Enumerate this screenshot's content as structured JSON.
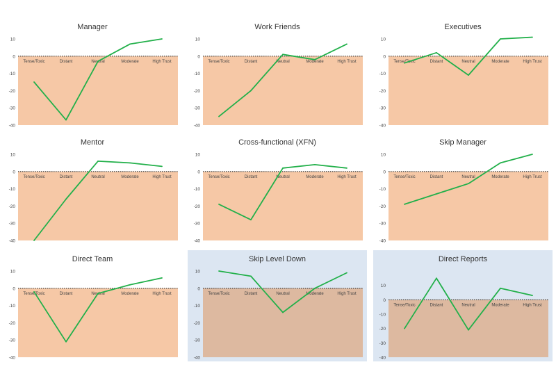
{
  "colors": {
    "negative_zone": "#f6c8a6",
    "negative_zone_blue_panel": "#ddb9a0",
    "blue_panel_bg": "#dce6f2",
    "line": "#22b04a",
    "zero_line": "#333333"
  },
  "chart_data": [
    {
      "type": "line",
      "title": "Manager",
      "categories": [
        "Tense/Toxic",
        "Distant",
        "Neutral",
        "Moderate",
        "High Trust"
      ],
      "values": [
        -15,
        -37,
        -3,
        7,
        10
      ],
      "ylim": [
        -40,
        10
      ],
      "yticks": [
        -40,
        -30,
        -20,
        -10,
        0,
        10
      ],
      "zero_line": "dotted",
      "background": "white"
    },
    {
      "type": "line",
      "title": "Work Friends",
      "categories": [
        "Tense/Toxic",
        "Distant",
        "Neutral",
        "Moderate",
        "High Trust"
      ],
      "values": [
        -35,
        -20,
        1,
        -2,
        7
      ],
      "ylim": [
        -40,
        10
      ],
      "yticks": [
        -40,
        -30,
        -20,
        -10,
        0,
        10
      ],
      "zero_line": "dotted",
      "background": "white"
    },
    {
      "type": "line",
      "title": "Executives",
      "categories": [
        "Tense/Toxic",
        "Distant",
        "Neutral",
        "Moderate",
        "High Trust"
      ],
      "values": [
        -4,
        2,
        -11,
        10,
        11
      ],
      "ylim": [
        -40,
        10
      ],
      "yticks": [
        -40,
        -30,
        -20,
        -10,
        0,
        10
      ],
      "zero_line": "dotted",
      "background": "white"
    },
    {
      "type": "line",
      "title": "Mentor",
      "categories": [
        "Tense/Toxic",
        "Distant",
        "Neutral",
        "Moderate",
        "High Trust"
      ],
      "values": [
        -40,
        -16,
        6,
        5,
        3
      ],
      "ylim": [
        -40,
        10
      ],
      "yticks": [
        -40,
        -30,
        -20,
        -10,
        0,
        10
      ],
      "zero_line": "dotted",
      "background": "white"
    },
    {
      "type": "line",
      "title": "Cross-functional (XFN)",
      "categories": [
        "Tense/Toxic",
        "Distant",
        "Neutral",
        "Moderate",
        "High Trust"
      ],
      "values": [
        -19,
        -28,
        2,
        4,
        2
      ],
      "ylim": [
        -40,
        10
      ],
      "yticks": [
        -40,
        -30,
        -20,
        -10,
        0,
        10
      ],
      "zero_line": "dotted",
      "background": "white"
    },
    {
      "type": "line",
      "title": "Skip Manager",
      "categories": [
        "Tense/Toxic",
        "Distant",
        "Neutral",
        "Moderate",
        "High Trust"
      ],
      "values": [
        -19,
        -13,
        -7,
        5,
        10
      ],
      "ylim": [
        -40,
        10
      ],
      "yticks": [
        -40,
        -30,
        -20,
        -10,
        0,
        10
      ],
      "zero_line": "dotted",
      "background": "white"
    },
    {
      "type": "line",
      "title": "Direct Team",
      "categories": [
        "Tense/Toxic",
        "Distant",
        "Neutral",
        "Moderate",
        "High Trust"
      ],
      "values": [
        -2,
        -31,
        -3,
        2,
        6
      ],
      "ylim": [
        -40,
        10
      ],
      "yticks": [
        -40,
        -30,
        -20,
        -10,
        0,
        10
      ],
      "zero_line": "dotted",
      "background": "white"
    },
    {
      "type": "line",
      "title": "Skip Level Down",
      "categories": [
        "Tense/Toxic",
        "Distant",
        "Neutral",
        "Moderate",
        "High Trust"
      ],
      "values": [
        10,
        7,
        -14,
        0,
        9
      ],
      "ylim": [
        -40,
        10
      ],
      "yticks": [
        -40,
        -30,
        -20,
        -10,
        0,
        10
      ],
      "zero_line": "dotted",
      "background": "blue"
    },
    {
      "type": "line",
      "title": "Direct Reports",
      "categories": [
        "Tense/Toxic",
        "Distant",
        "Neutral",
        "Moderate",
        "High Trust"
      ],
      "values": [
        -20,
        15,
        -21,
        8,
        3
      ],
      "ylim": [
        -40,
        20
      ],
      "yticks": [
        -40,
        -30,
        -20,
        -10,
        0,
        10
      ],
      "zero_line": "dotted",
      "background": "blue"
    }
  ]
}
